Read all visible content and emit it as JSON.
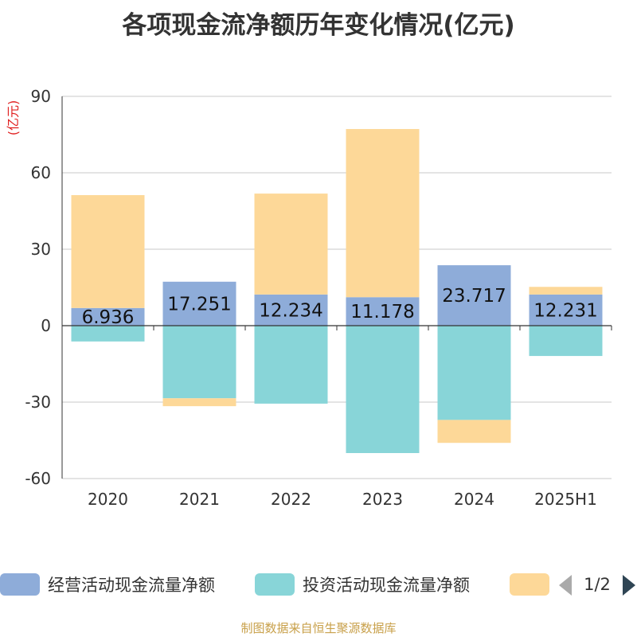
{
  "chart_data": {
    "type": "bar",
    "stacked": true,
    "title": "各项现金流净额历年变化情况(亿元)",
    "ylabel": "(亿元)",
    "ylim": [
      -60,
      90
    ],
    "yticks": [
      90,
      60,
      30,
      0,
      -30,
      -60
    ],
    "grid": true,
    "categories": [
      "2020",
      "2021",
      "2022",
      "2023",
      "2024",
      "2025H1"
    ],
    "series": [
      {
        "name": "经营活动现金流量净额",
        "color": "#8eacd9",
        "values": [
          6.936,
          17.251,
          12.234,
          11.178,
          23.717,
          12.231
        ],
        "labels": [
          "6.936",
          "17.251",
          "12.234",
          "11.178",
          "23.717",
          "12.231"
        ]
      },
      {
        "name": "投资活动现金流量净额",
        "color": "#88d5d8",
        "values": [
          -6.2,
          -28.5,
          -30.6,
          -50.0,
          -37.0,
          -11.9
        ]
      },
      {
        "name": "",
        "color": "#fdd898",
        "values": [
          44.3,
          -3.1,
          39.6,
          66.0,
          -9.0,
          3.0
        ]
      }
    ],
    "legend": {
      "position": "bottom",
      "page": "1/2"
    }
  },
  "footer": {
    "source": "制图数据来自恒生聚源数据库"
  }
}
